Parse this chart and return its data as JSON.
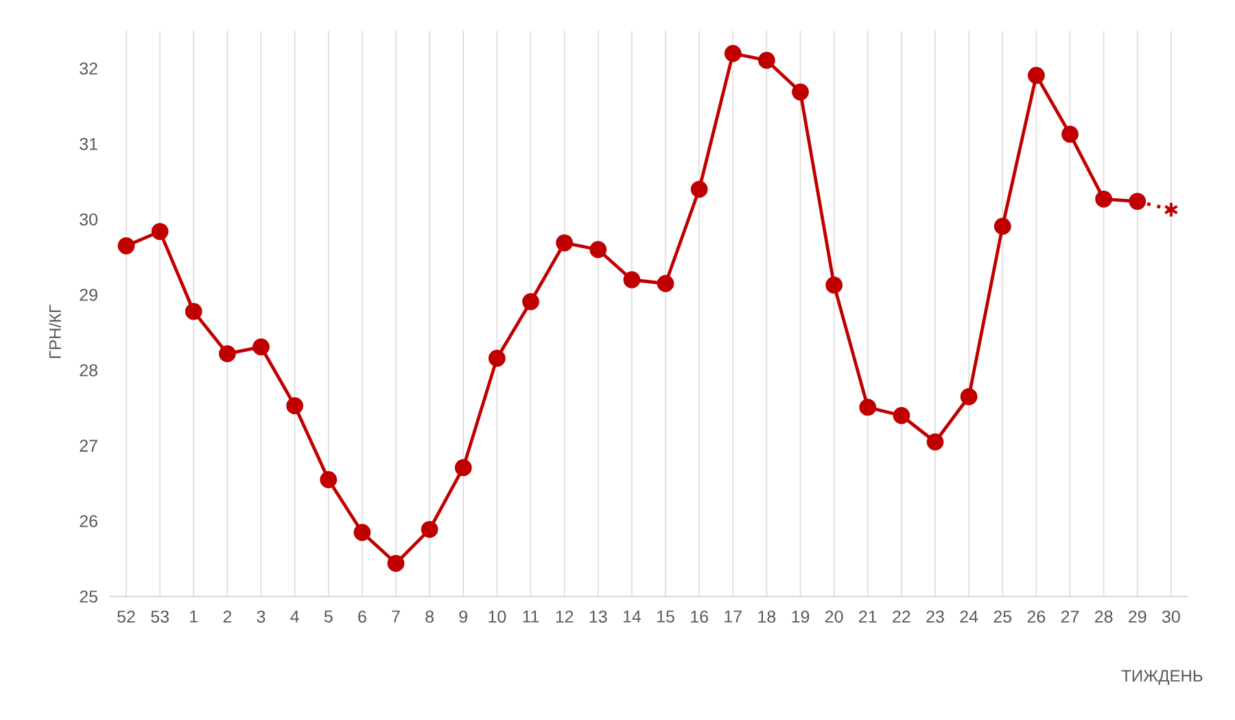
{
  "chart_data": {
    "type": "line",
    "xlabel": "ТИЖДЕНЬ",
    "ylabel": "ГРН/КГ",
    "categories": [
      "52",
      "53",
      "1",
      "2",
      "3",
      "4",
      "5",
      "6",
      "7",
      "8",
      "9",
      "10",
      "11",
      "12",
      "13",
      "14",
      "15",
      "16",
      "17",
      "18",
      "19",
      "20",
      "21",
      "22",
      "23",
      "24",
      "25",
      "26",
      "27",
      "28",
      "29",
      "30"
    ],
    "series": [
      {
        "color": "#c00000",
        "marker": "circle",
        "line_style": "solid",
        "values": [
          29.65,
          29.84,
          28.78,
          28.22,
          28.31,
          27.53,
          26.55,
          25.85,
          25.44,
          25.89,
          26.71,
          28.16,
          28.91,
          29.69,
          29.6,
          29.2,
          29.15,
          30.4,
          32.2,
          32.11,
          31.69,
          29.13,
          27.51,
          27.4,
          27.05,
          27.65,
          29.91,
          31.91,
          31.13,
          30.27,
          30.24,
          null
        ]
      },
      {
        "color": "#c00000",
        "marker": "cross",
        "line_style": "dotted",
        "values": [
          null,
          null,
          null,
          null,
          null,
          null,
          null,
          null,
          null,
          null,
          null,
          null,
          null,
          null,
          null,
          null,
          null,
          null,
          null,
          null,
          null,
          null,
          null,
          null,
          null,
          null,
          null,
          null,
          null,
          null,
          30.24,
          30.13
        ]
      }
    ],
    "ylim": [
      25,
      32.5
    ],
    "yticks": [
      25,
      26,
      27,
      28,
      29,
      30,
      31,
      32
    ],
    "grid": "x"
  }
}
